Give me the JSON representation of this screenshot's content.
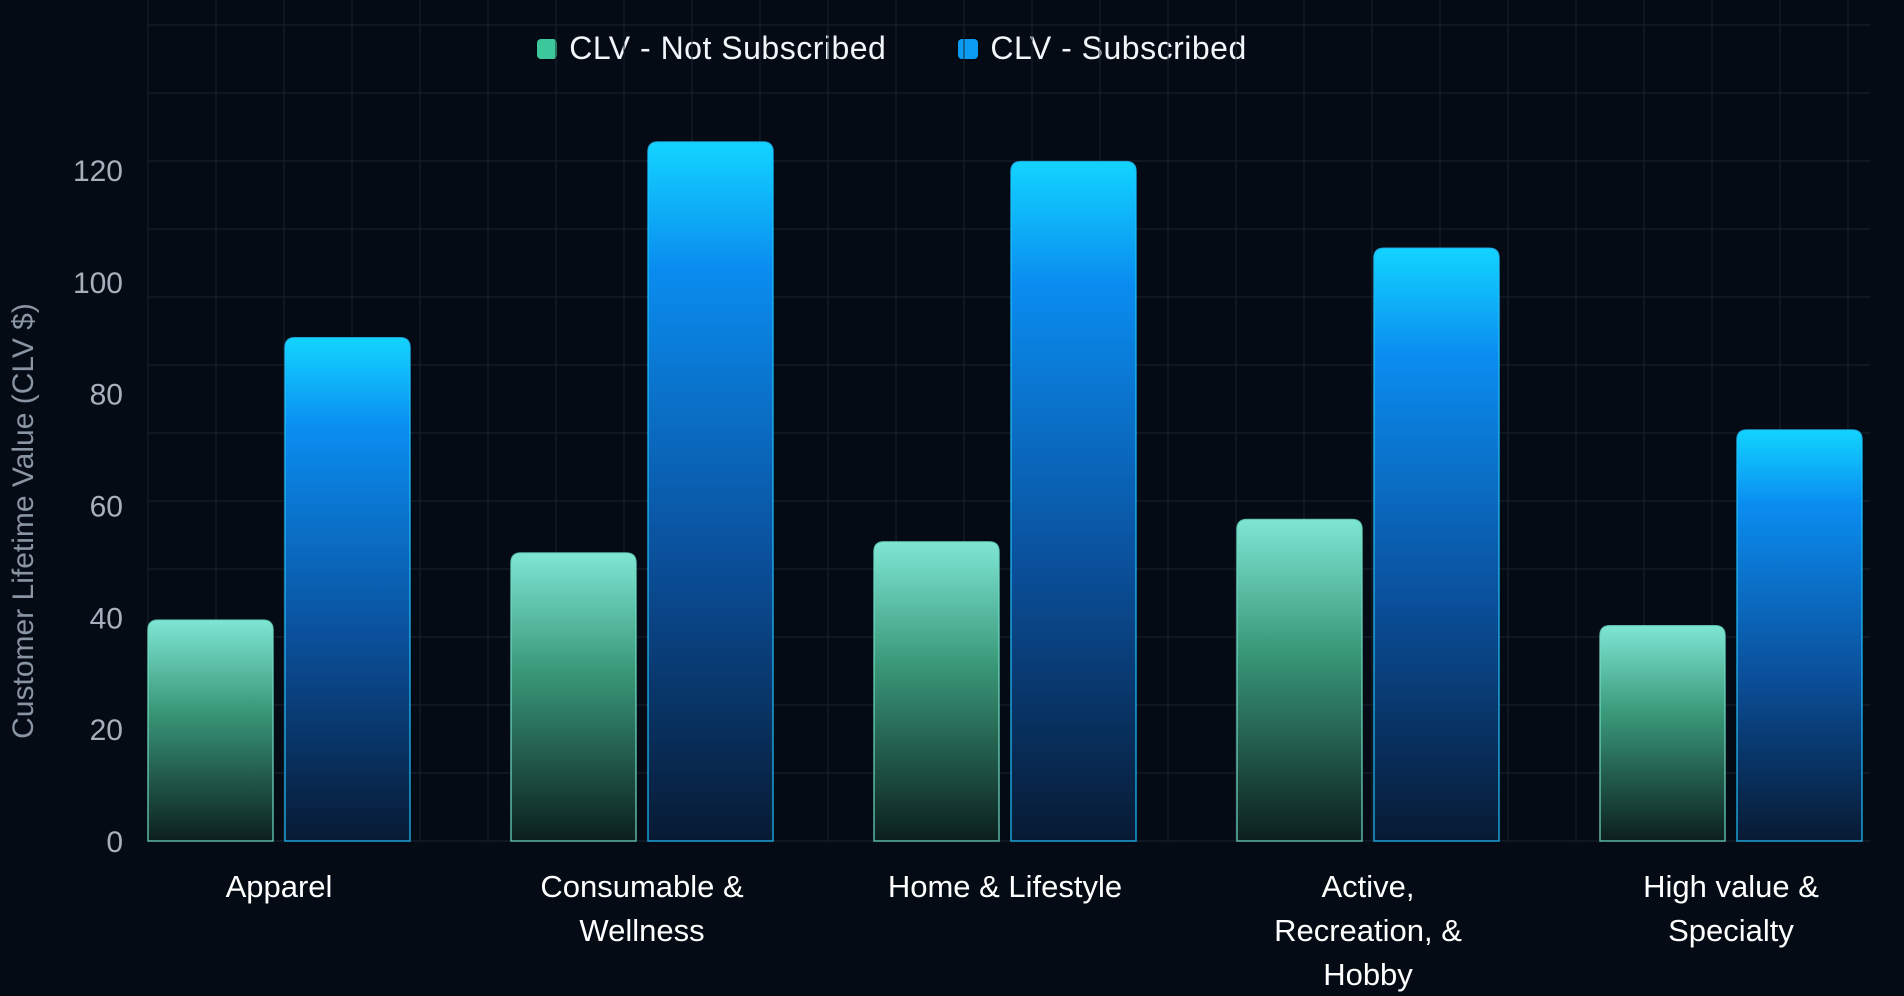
{
  "chart_data": {
    "type": "bar",
    "title": "",
    "xlabel": "",
    "ylabel": "Customer Lifetime Value (CLV $)",
    "ylim": [
      0,
      130
    ],
    "yticks": [
      0,
      20,
      40,
      60,
      80,
      100,
      120
    ],
    "grid": true,
    "legend_position": "top-center",
    "categories": [
      [
        "Apparel"
      ],
      [
        "Consumable &",
        "Wellness"
      ],
      [
        "Home & Lifestyle"
      ],
      [
        "Active,",
        "Recreation, &",
        "Hobby"
      ],
      [
        "High value &",
        "Specialty"
      ]
    ],
    "series": [
      {
        "name": "CLV - Not Subscribed",
        "color": "#3cc89a",
        "values": [
          39.5,
          51.5,
          53.5,
          57.5,
          38.5
        ]
      },
      {
        "name": "CLV - Subscribed",
        "color": "#0a9cf0",
        "values": [
          90,
          125,
          121.5,
          106,
          73.5
        ]
      }
    ]
  }
}
